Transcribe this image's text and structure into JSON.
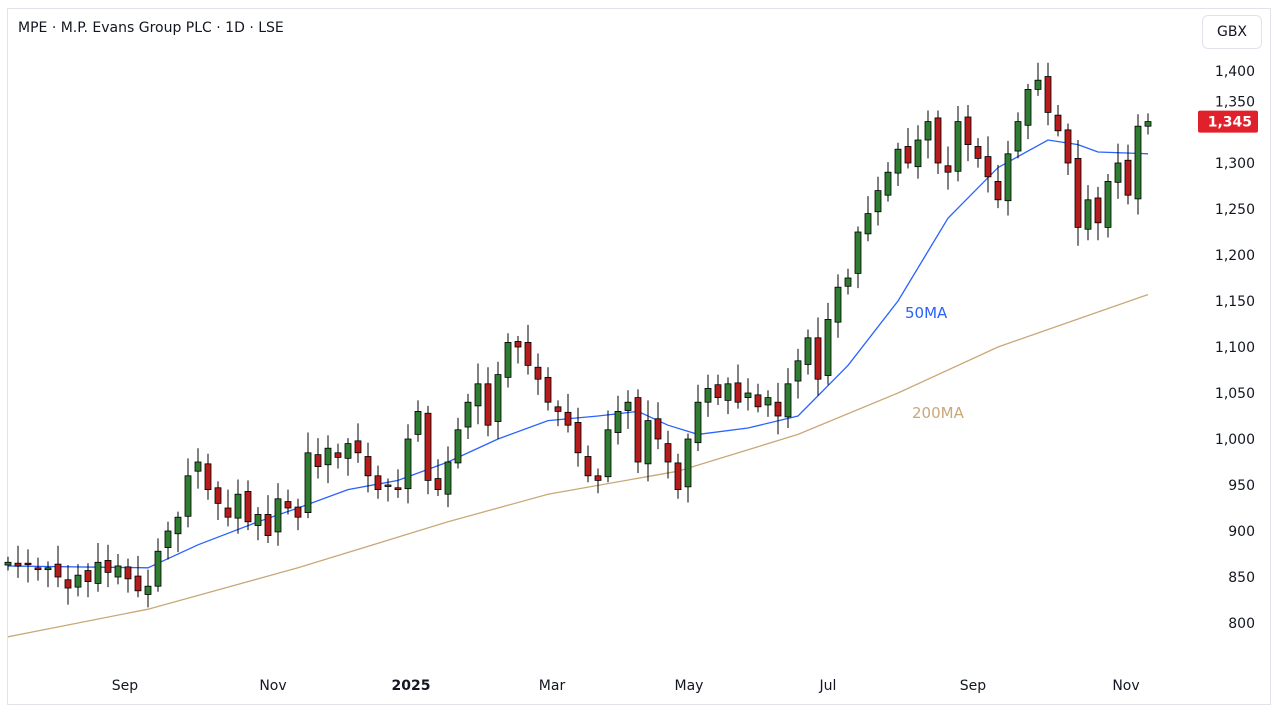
{
  "header": {
    "title": "MPE · M.P. Evans Group PLC · 1D · LSE",
    "currency": "GBX"
  },
  "chart_data": {
    "type": "candlestick",
    "title": "MPE · M.P. Evans Group PLC · 1D · LSE",
    "ylabel": "GBX",
    "ylim": [
      760,
      1440
    ],
    "y_ticks": [
      800,
      850,
      900,
      950,
      1000,
      1050,
      1100,
      1150,
      1200,
      1250,
      1300,
      1350,
      1400
    ],
    "y_tick_labels": [
      "800",
      "850",
      "900",
      "950",
      "1,000",
      "1,050",
      "1,100",
      "1,150",
      "1,200",
      "1,250",
      "1,300",
      "1,350",
      "1,400"
    ],
    "x_ticks": [
      {
        "label": "Sep",
        "index": 11.7
      },
      {
        "label": "Nov",
        "index": 26.5
      },
      {
        "label": "2025",
        "index": 40.3,
        "bold": true
      },
      {
        "label": "Mar",
        "index": 54.4
      },
      {
        "label": "May",
        "index": 68.1
      },
      {
        "label": "Jul",
        "index": 82
      },
      {
        "label": "Sep",
        "index": 96.5
      },
      {
        "label": "Nov",
        "index": 111.8
      }
    ],
    "closes": [
      866,
      862,
      864,
      858,
      860,
      850,
      838,
      852,
      845,
      866,
      855,
      862,
      848,
      835,
      840,
      878,
      900,
      915,
      960,
      975,
      945,
      930,
      915,
      940,
      910,
      918,
      895,
      935,
      925,
      915,
      985,
      970,
      990,
      980,
      995,
      985,
      960,
      945,
      950,
      945,
      1000,
      1030,
      955,
      945,
      975,
      1010,
      1040,
      1060,
      1015,
      1070,
      1105,
      1100,
      1080,
      1065,
      1040,
      1030,
      1015,
      985,
      960,
      955,
      1010,
      1030,
      1040,
      975,
      1020,
      1000,
      975,
      945,
      1000,
      1040,
      1055,
      1045,
      1060,
      1040,
      1050,
      1035,
      1045,
      1025,
      1060,
      1085,
      1110,
      1065,
      1130,
      1165,
      1175,
      1225,
      1245,
      1270,
      1290,
      1315,
      1300,
      1325,
      1345,
      1300,
      1290,
      1345,
      1320,
      1305,
      1285,
      1260,
      1310,
      1345,
      1380,
      1390,
      1355,
      1335,
      1300,
      1230,
      1260,
      1235,
      1280,
      1300,
      1265,
      1340,
      1345
    ],
    "series": [
      {
        "name": "50MA",
        "label": "50MA",
        "color": "#2962ff",
        "points": [
          [
            0,
            862
          ],
          [
            14,
            860
          ],
          [
            19,
            885
          ],
          [
            25,
            910
          ],
          [
            29,
            925
          ],
          [
            34,
            945
          ],
          [
            39,
            955
          ],
          [
            44,
            975
          ],
          [
            49,
            1000
          ],
          [
            54,
            1020
          ],
          [
            59,
            1025
          ],
          [
            63,
            1030
          ],
          [
            66,
            1015
          ],
          [
            69,
            1005
          ],
          [
            74,
            1012
          ],
          [
            79,
            1025
          ],
          [
            84,
            1080
          ],
          [
            89,
            1150
          ],
          [
            94,
            1240
          ],
          [
            99,
            1295
          ],
          [
            104,
            1325
          ],
          [
            107,
            1320
          ],
          [
            109,
            1312
          ],
          [
            114,
            1310
          ]
        ]
      },
      {
        "name": "200MA",
        "label": "200MA",
        "color": "#c9a878",
        "points": [
          [
            0,
            785
          ],
          [
            14,
            815
          ],
          [
            29,
            860
          ],
          [
            44,
            910
          ],
          [
            54,
            940
          ],
          [
            67,
            965
          ],
          [
            79,
            1005
          ],
          [
            89,
            1050
          ],
          [
            99,
            1100
          ],
          [
            114,
            1157
          ]
        ]
      }
    ],
    "last_price": {
      "label": "1,345",
      "value": 1345,
      "color": "#e0202b"
    },
    "up_color": "#2e7d32",
    "down_color": "#b71c1c",
    "grid": false
  }
}
